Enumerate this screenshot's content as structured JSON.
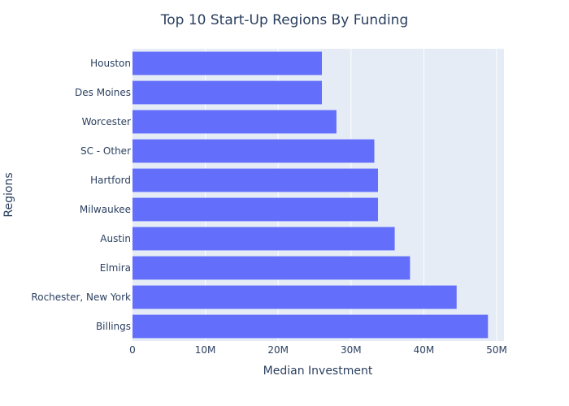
{
  "chart_data": {
    "type": "bar",
    "orientation": "horizontal",
    "title": "Top 10 Start-Up Regions By Funding",
    "xlabel": "Median Investment",
    "ylabel": "Regions",
    "categories": [
      "Houston",
      "Des Moines",
      "Worcester",
      "SC - Other",
      "Hartford",
      "Milwaukee",
      "Austin",
      "Elmira",
      "Rochester, New York",
      "Billings"
    ],
    "values": [
      26000000,
      26000000,
      28000000,
      33200000,
      33700000,
      33700000,
      36000000,
      38100000,
      44500000,
      48800000
    ],
    "xlim": [
      0,
      51000000
    ],
    "x_ticks": [
      0,
      10000000,
      20000000,
      30000000,
      40000000,
      50000000
    ],
    "x_tick_labels": [
      "0",
      "10M",
      "20M",
      "30M",
      "40M",
      "50M"
    ],
    "grid": true,
    "colors": {
      "bar": "#636efa",
      "plot_background": "#e5ecf6",
      "gridline": "#ffffff",
      "text": "#2a3f5f"
    }
  }
}
